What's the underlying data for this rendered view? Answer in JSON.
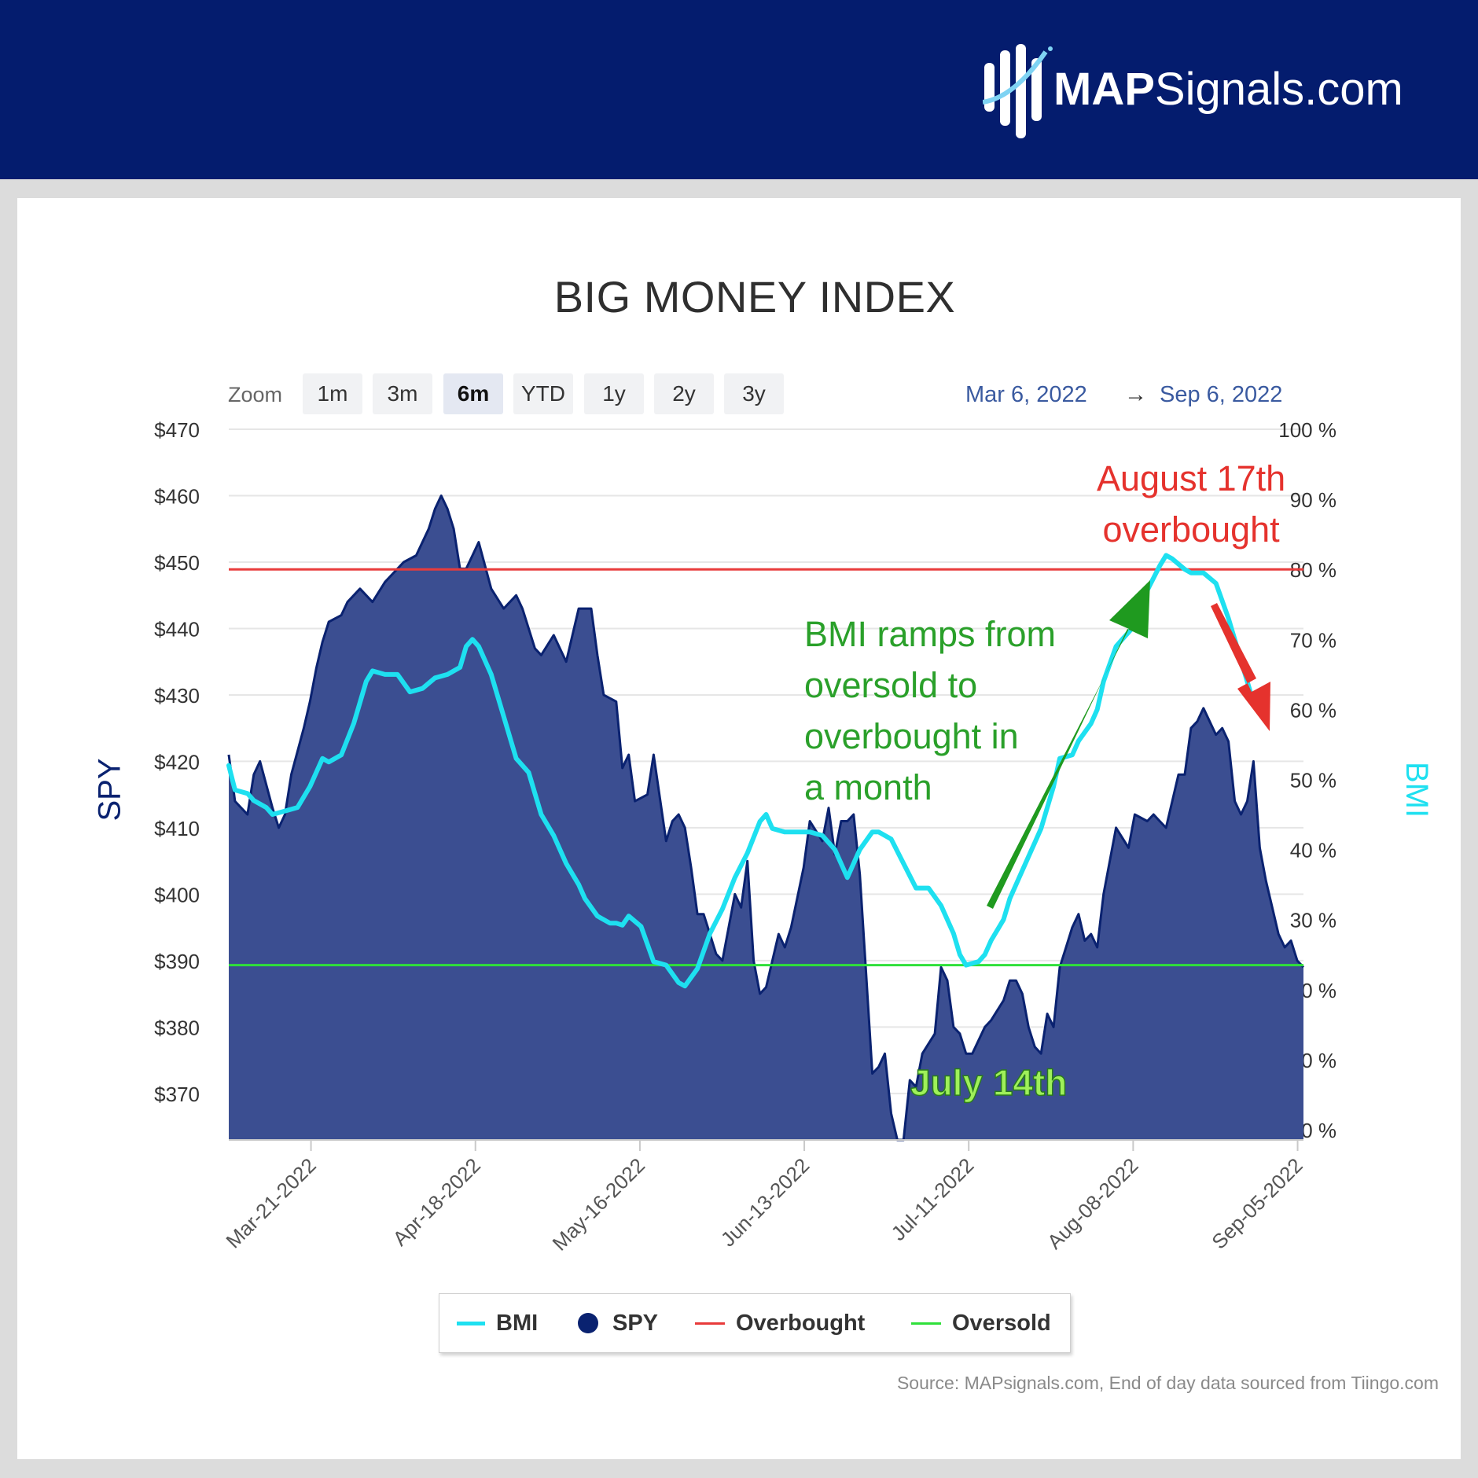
{
  "brand": {
    "name_bold": "MAP",
    "name_rest": "Signals.com"
  },
  "chart_title": "BIG MONEY INDEX",
  "zoom": {
    "label": "Zoom",
    "buttons": [
      "1m",
      "3m",
      "6m",
      "YTD",
      "1y",
      "2y",
      "3y"
    ],
    "active": "6m"
  },
  "range": {
    "from": "Mar 6, 2022",
    "arrow": "→",
    "to": "Sep 6, 2022"
  },
  "axes": {
    "left_title": "SPY",
    "right_title": "BMI"
  },
  "legend": [
    {
      "label": "BMI",
      "color": "#1ee0f0",
      "symbol": "line"
    },
    {
      "label": "SPY",
      "color": "#0a2270",
      "symbol": "circle"
    },
    {
      "label": "Overbought",
      "color": "#e83b3b",
      "symbol": "line"
    },
    {
      "label": "Oversold",
      "color": "#2fe03a",
      "symbol": "line"
    }
  ],
  "annotations": {
    "green_lines": [
      "BMI ramps from",
      "oversold to",
      "overbought in",
      "a month"
    ],
    "red_lines": [
      "August 17th",
      "overbought"
    ],
    "july": "July 14th"
  },
  "source": "Source: MAPsignals.com, End of day data sourced from Tiingo.com",
  "colors": {
    "header": "#041c6e",
    "spy_fill": "#3b4e91",
    "spy_line": "#0a2270",
    "bmi": "#1ee0f0",
    "overbought": "#e83b3b",
    "oversold": "#2fe03a"
  },
  "chart_data": {
    "type": "area",
    "x_start": "2022-03-07",
    "x_end": "2022-09-06",
    "x_tick_labels": [
      "Mar-21-2022",
      "Apr-18-2022",
      "May-16-2022",
      "Jun-13-2022",
      "Jul-11-2022",
      "Aug-08-2022",
      "Sep-05-2022"
    ],
    "y_left": {
      "title": "SPY",
      "min": 363,
      "max": 470,
      "ticks": [
        "$470",
        "$460",
        "$450",
        "$440",
        "$430",
        "$420",
        "$410",
        "$400",
        "$390",
        "$380",
        "$370"
      ],
      "tick_values": [
        470,
        460,
        450,
        440,
        430,
        420,
        410,
        400,
        390,
        380,
        370
      ]
    },
    "y_right": {
      "title": "BMI",
      "min": 0,
      "max": 100,
      "ticks": [
        "100 %",
        "90 %",
        "80 %",
        "70 %",
        "60 %",
        "50 %",
        "40 %",
        "30 %",
        "20 %",
        "10 %",
        "0 %"
      ],
      "tick_values": [
        100,
        90,
        80,
        70,
        60,
        50,
        40,
        30,
        20,
        10,
        0
      ]
    },
    "reference_lines": [
      {
        "name": "Overbought",
        "axis": "right",
        "value": 80
      },
      {
        "name": "Oversold",
        "axis": "right",
        "value": 23.5
      }
    ],
    "series": [
      {
        "name": "SPY",
        "axis": "left",
        "style": "area",
        "values": [
          [
            0,
            421
          ],
          [
            1,
            414
          ],
          [
            3,
            412
          ],
          [
            4,
            418
          ],
          [
            5,
            420
          ],
          [
            7,
            413
          ],
          [
            8,
            410
          ],
          [
            9,
            412
          ],
          [
            10,
            418
          ],
          [
            12,
            425
          ],
          [
            13,
            429
          ],
          [
            14,
            434
          ],
          [
            15,
            438
          ],
          [
            16,
            441
          ],
          [
            18,
            442
          ],
          [
            19,
            444
          ],
          [
            21,
            446
          ],
          [
            23,
            444
          ],
          [
            25,
            447
          ],
          [
            28,
            450
          ],
          [
            30,
            451
          ],
          [
            32,
            455
          ],
          [
            33,
            458
          ],
          [
            34,
            460
          ],
          [
            35,
            458
          ],
          [
            36,
            455
          ],
          [
            37,
            449
          ],
          [
            38,
            449
          ],
          [
            39,
            451
          ],
          [
            40,
            453
          ],
          [
            42,
            446
          ],
          [
            44,
            443
          ],
          [
            45,
            444
          ],
          [
            46,
            445
          ],
          [
            47,
            443
          ],
          [
            49,
            437
          ],
          [
            50,
            436
          ],
          [
            52,
            439
          ],
          [
            53,
            437
          ],
          [
            54,
            435
          ],
          [
            56,
            443
          ],
          [
            58,
            443
          ],
          [
            59,
            436
          ],
          [
            60,
            430
          ],
          [
            62,
            429
          ],
          [
            63,
            419
          ],
          [
            64,
            421
          ],
          [
            65,
            414
          ],
          [
            67,
            415
          ],
          [
            68,
            421
          ],
          [
            70,
            408
          ],
          [
            71,
            411
          ],
          [
            72,
            412
          ],
          [
            73,
            410
          ],
          [
            74,
            404
          ],
          [
            75,
            397
          ],
          [
            76,
            397
          ],
          [
            77,
            394
          ],
          [
            78,
            391
          ],
          [
            79,
            390
          ],
          [
            81,
            400
          ],
          [
            82,
            398
          ],
          [
            83,
            405
          ],
          [
            84,
            390
          ],
          [
            85,
            385
          ],
          [
            86,
            386
          ],
          [
            88,
            394
          ],
          [
            89,
            392
          ],
          [
            90,
            395
          ],
          [
            92,
            404
          ],
          [
            93,
            411
          ],
          [
            95,
            408
          ],
          [
            96,
            413
          ],
          [
            97,
            406
          ],
          [
            98,
            411
          ],
          [
            99,
            411
          ],
          [
            100,
            412
          ],
          [
            101,
            403
          ],
          [
            102,
            388
          ],
          [
            103,
            373
          ],
          [
            104,
            374
          ],
          [
            105,
            376
          ],
          [
            106,
            367
          ],
          [
            107,
            363
          ],
          [
            108,
            363
          ],
          [
            109,
            372
          ],
          [
            110,
            371
          ],
          [
            111,
            376
          ],
          [
            113,
            379
          ],
          [
            114,
            389
          ],
          [
            115,
            387
          ],
          [
            116,
            380
          ],
          [
            117,
            379
          ],
          [
            118,
            376
          ],
          [
            119,
            376
          ],
          [
            121,
            380
          ],
          [
            122,
            381
          ],
          [
            124,
            384
          ],
          [
            125,
            387
          ],
          [
            126,
            387
          ],
          [
            127,
            385
          ],
          [
            128,
            380
          ],
          [
            129,
            377
          ],
          [
            130,
            376
          ],
          [
            131,
            382
          ],
          [
            132,
            380
          ],
          [
            133,
            389
          ],
          [
            134,
            392
          ],
          [
            135,
            395
          ],
          [
            136,
            397
          ],
          [
            137,
            393
          ],
          [
            138,
            394
          ],
          [
            139,
            392
          ],
          [
            140,
            400
          ],
          [
            142,
            410
          ],
          [
            144,
            407
          ],
          [
            145,
            412
          ],
          [
            147,
            411
          ],
          [
            148,
            412
          ],
          [
            149,
            411
          ],
          [
            150,
            410
          ],
          [
            152,
            418
          ],
          [
            153,
            418
          ],
          [
            154,
            425
          ],
          [
            155,
            426
          ],
          [
            156,
            428
          ],
          [
            158,
            424
          ],
          [
            159,
            425
          ],
          [
            160,
            423
          ],
          [
            161,
            414
          ],
          [
            162,
            412
          ],
          [
            163,
            414
          ],
          [
            164,
            420
          ],
          [
            165,
            407
          ],
          [
            166,
            402
          ],
          [
            167,
            398
          ],
          [
            168,
            394
          ],
          [
            169,
            392
          ],
          [
            170,
            393
          ],
          [
            171,
            390
          ],
          [
            172,
            389
          ]
        ]
      },
      {
        "name": "BMI",
        "axis": "right",
        "style": "line",
        "values": [
          [
            0,
            52
          ],
          [
            1,
            48.5
          ],
          [
            3,
            48
          ],
          [
            4,
            47
          ],
          [
            6,
            46
          ],
          [
            7,
            45
          ],
          [
            9,
            45.5
          ],
          [
            11,
            46
          ],
          [
            13,
            49
          ],
          [
            15,
            53
          ],
          [
            16,
            52.5
          ],
          [
            18,
            53.5
          ],
          [
            20,
            58
          ],
          [
            22,
            64
          ],
          [
            23,
            65.5
          ],
          [
            25,
            65
          ],
          [
            27,
            65
          ],
          [
            29,
            62.5
          ],
          [
            31,
            63
          ],
          [
            33,
            64.5
          ],
          [
            35,
            65
          ],
          [
            37,
            66
          ],
          [
            38,
            69
          ],
          [
            39,
            70
          ],
          [
            40,
            69
          ],
          [
            42,
            65
          ],
          [
            44,
            59
          ],
          [
            46,
            53
          ],
          [
            48,
            51
          ],
          [
            50,
            45
          ],
          [
            52,
            42
          ],
          [
            54,
            38
          ],
          [
            56,
            35
          ],
          [
            57,
            33
          ],
          [
            59,
            30.5
          ],
          [
            61,
            29.5
          ],
          [
            62,
            29.5
          ],
          [
            63,
            29.2
          ],
          [
            64,
            30.5
          ],
          [
            66,
            29
          ],
          [
            68,
            24
          ],
          [
            70,
            23.5
          ],
          [
            72,
            21
          ],
          [
            73,
            20.5
          ],
          [
            75,
            23
          ],
          [
            77,
            28
          ],
          [
            79,
            31.5
          ],
          [
            81,
            36
          ],
          [
            83,
            39.5
          ],
          [
            85,
            44
          ],
          [
            86,
            45
          ],
          [
            87,
            43
          ],
          [
            89,
            42.5
          ],
          [
            91,
            42.5
          ],
          [
            93,
            42.5
          ],
          [
            95,
            42
          ],
          [
            97,
            40
          ],
          [
            99,
            36
          ],
          [
            101,
            40
          ],
          [
            103,
            42.5
          ],
          [
            104,
            42.5
          ],
          [
            106,
            41.5
          ],
          [
            108,
            38
          ],
          [
            110,
            34.5
          ],
          [
            112,
            34.5
          ],
          [
            114,
            32
          ],
          [
            116,
            28
          ],
          [
            117,
            25
          ],
          [
            118,
            23.5
          ],
          [
            120,
            24
          ],
          [
            121,
            25
          ],
          [
            122,
            27
          ],
          [
            124,
            30
          ],
          [
            125,
            33
          ],
          [
            126,
            35
          ],
          [
            128,
            39
          ],
          [
            129,
            41
          ],
          [
            130,
            43
          ],
          [
            132,
            49
          ],
          [
            133,
            53
          ],
          [
            135,
            53.5
          ],
          [
            136,
            55.5
          ],
          [
            138,
            58
          ],
          [
            139,
            60
          ],
          [
            140,
            64
          ],
          [
            142,
            69
          ],
          [
            143,
            70
          ],
          [
            145,
            72
          ],
          [
            147,
            77
          ],
          [
            149,
            80.5
          ],
          [
            150,
            82
          ],
          [
            151,
            81.5
          ],
          [
            153,
            80
          ],
          [
            154,
            79.5
          ],
          [
            156,
            79.5
          ],
          [
            158,
            78
          ],
          [
            160,
            73
          ],
          [
            162,
            67
          ],
          [
            164,
            61
          ],
          [
            165,
            59.5
          ]
        ]
      }
    ]
  }
}
